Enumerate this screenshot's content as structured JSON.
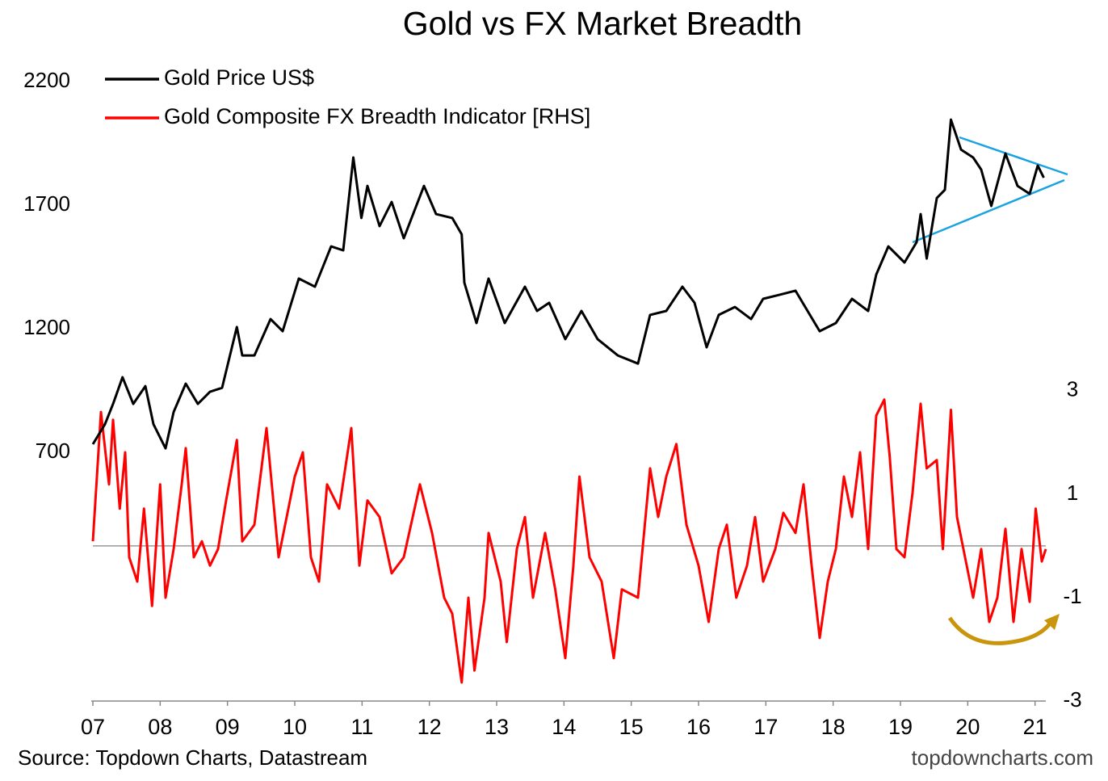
{
  "chart_data": {
    "type": "line",
    "title": "Gold vs FX Market Breadth",
    "source": "Source: Topdown Charts, Datastream",
    "watermark": "topdowncharts.com",
    "xlim": [
      7,
      21.16
    ],
    "xticks": [
      {
        "value": 7,
        "label": "07"
      },
      {
        "value": 8,
        "label": "08"
      },
      {
        "value": 9,
        "label": "09"
      },
      10,
      11,
      12,
      13,
      14,
      15,
      16,
      17,
      18,
      19,
      20,
      21
    ],
    "ylim": [
      -306,
      2200
    ],
    "yticks": [
      700,
      1200,
      1700,
      2200
    ],
    "y2lim": [
      -3,
      8.98
    ],
    "y2ticks": [
      -3,
      -1,
      1,
      3
    ],
    "y2_reference_line": 0,
    "legend": "upper left",
    "series": [
      {
        "name": "Gold Price US$",
        "color": "#000000",
        "x": [
          7.0,
          7.18,
          7.3,
          7.44,
          7.6,
          7.78,
          7.9,
          8.08,
          8.2,
          8.38,
          8.56,
          8.74,
          8.92,
          9.14,
          9.22,
          9.4,
          9.64,
          9.82,
          10.06,
          10.3,
          10.54,
          10.72,
          10.87,
          10.99,
          11.08,
          11.26,
          11.44,
          11.62,
          11.92,
          12.1,
          12.34,
          12.48,
          12.52,
          12.7,
          12.88,
          13.12,
          13.42,
          13.6,
          13.78,
          14.02,
          14.26,
          14.5,
          14.8,
          15.1,
          15.28,
          15.52,
          15.76,
          15.94,
          16.12,
          16.3,
          16.54,
          16.78,
          16.96,
          17.2,
          17.44,
          17.62,
          17.8,
          18.04,
          18.28,
          18.52,
          18.64,
          18.82,
          19.06,
          19.24,
          19.3,
          19.39,
          19.54,
          19.66,
          19.75,
          19.9,
          20.08,
          20.2,
          20.35,
          20.56,
          20.74,
          20.92,
          21.04,
          21.13
        ],
        "values": [
          733,
          814,
          896,
          1004,
          896,
          968,
          814,
          716,
          863,
          978,
          896,
          945,
          961,
          1207,
          1092,
          1092,
          1239,
          1190,
          1403,
          1370,
          1533,
          1517,
          1893,
          1648,
          1778,
          1615,
          1713,
          1566,
          1778,
          1664,
          1648,
          1582,
          1386,
          1223,
          1403,
          1223,
          1370,
          1272,
          1305,
          1158,
          1272,
          1158,
          1092,
          1059,
          1256,
          1272,
          1370,
          1305,
          1125,
          1256,
          1288,
          1239,
          1321,
          1337,
          1354,
          1272,
          1190,
          1223,
          1321,
          1272,
          1419,
          1533,
          1468,
          1550,
          1664,
          1484,
          1729,
          1762,
          2046,
          1925,
          1893,
          1844,
          1697,
          1909,
          1778,
          1746,
          1860,
          1811
        ]
      },
      {
        "name": "Gold Composite FX Breadth Indicator [RHS]",
        "color": "#ff0000",
        "axis": "y2",
        "x": [
          7.0,
          7.06,
          7.12,
          7.24,
          7.3,
          7.4,
          7.48,
          7.54,
          7.66,
          7.76,
          7.88,
          8.0,
          8.08,
          8.2,
          8.32,
          8.38,
          8.5,
          8.62,
          8.74,
          8.86,
          8.98,
          9.14,
          9.22,
          9.4,
          9.58,
          9.76,
          9.88,
          10.0,
          10.12,
          10.24,
          10.36,
          10.48,
          10.66,
          10.84,
          10.96,
          11.08,
          11.26,
          11.44,
          11.62,
          11.86,
          12.04,
          12.22,
          12.34,
          12.48,
          12.58,
          12.67,
          12.82,
          12.88,
          13.06,
          13.15,
          13.3,
          13.42,
          13.54,
          13.72,
          13.87,
          14.02,
          14.14,
          14.23,
          14.38,
          14.56,
          14.74,
          14.86,
          15.1,
          15.28,
          15.4,
          15.52,
          15.67,
          15.82,
          16.0,
          16.15,
          16.3,
          16.42,
          16.56,
          16.72,
          16.84,
          16.96,
          17.14,
          17.26,
          17.44,
          17.56,
          17.68,
          17.8,
          17.92,
          18.04,
          18.16,
          18.28,
          18.4,
          18.52,
          18.64,
          18.76,
          18.84,
          18.94,
          19.06,
          19.18,
          19.3,
          19.39,
          19.54,
          19.63,
          19.75,
          19.84,
          19.96,
          20.08,
          20.2,
          20.32,
          20.44,
          20.56,
          20.68,
          20.8,
          20.92,
          21.01,
          21.1,
          21.16
        ],
        "values": [
          0.09,
          1.34,
          2.59,
          1.19,
          2.44,
          0.72,
          1.81,
          -0.22,
          -0.69,
          0.72,
          -1.16,
          1.19,
          -1.0,
          -0.06,
          1.19,
          1.89,
          -0.22,
          0.09,
          -0.38,
          -0.06,
          0.88,
          2.05,
          0.09,
          0.41,
          2.28,
          -0.22,
          0.56,
          1.34,
          1.81,
          -0.22,
          -0.69,
          1.19,
          0.72,
          2.28,
          -0.38,
          0.88,
          0.56,
          -0.53,
          -0.22,
          1.19,
          0.25,
          -1.0,
          -1.31,
          -2.64,
          -1.0,
          -2.41,
          -1.0,
          0.25,
          -0.69,
          -1.86,
          -0.06,
          0.56,
          -1.0,
          0.25,
          -0.84,
          -2.17,
          -0.38,
          1.34,
          -0.22,
          -0.69,
          -2.17,
          -0.84,
          -1.0,
          1.5,
          0.56,
          1.34,
          1.97,
          0.41,
          -0.38,
          -1.47,
          -0.06,
          0.41,
          -1.0,
          -0.38,
          0.56,
          -0.69,
          -0.06,
          0.64,
          0.25,
          1.19,
          -0.38,
          -1.78,
          -0.69,
          -0.06,
          1.34,
          0.56,
          1.81,
          -0.06,
          2.52,
          2.83,
          1.73,
          -0.06,
          -0.22,
          1.03,
          2.75,
          1.5,
          1.66,
          -0.06,
          2.63,
          0.56,
          -0.22,
          -1.0,
          -0.06,
          -1.47,
          -1.0,
          0.33,
          -1.47,
          -0.06,
          -1.08,
          0.72,
          -0.3,
          -0.06
        ]
      }
    ]
  }
}
